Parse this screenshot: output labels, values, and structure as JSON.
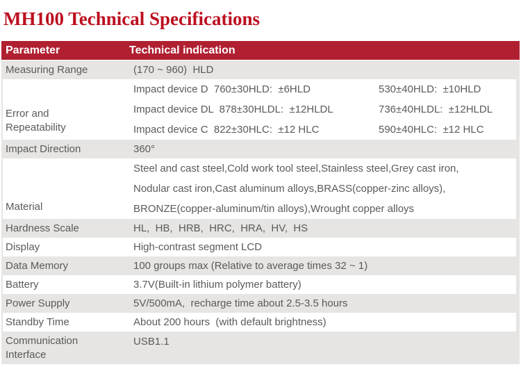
{
  "title": "MH100 Technical Specifications",
  "colors": {
    "title": "#bc0f1f",
    "header_bg": "#b02031",
    "row_alt": "#e6e5e3",
    "body_text": "#5a5a5a",
    "header_text": "#ffffff"
  },
  "table": {
    "headers": [
      "Parameter",
      "Technical indication"
    ],
    "rows": [
      {
        "param_lines": [
          "Measuring Range"
        ],
        "value_lines": [
          [
            "(170 ~ 960)  HLD"
          ]
        ]
      },
      {
        "param_lines": [
          "Error and",
          "Repeatability"
        ],
        "value_lines": [
          [
            "Impact device D  760±30HLD:  ±6HLD",
            "530±40HLD:  ±10HLD"
          ],
          [
            "Impact device DL  878±30HLDL:  ±12HLDL",
            "736±40HLDL:  ±12HLDL"
          ],
          [
            "Impact device C  822±30HLC:  ±12 HLC",
            "590±40HLC:  ±12 HLC"
          ]
        ]
      },
      {
        "param_lines": [
          "Impact Direction"
        ],
        "value_lines": [
          [
            "360°"
          ]
        ]
      },
      {
        "param_lines": [
          "Material"
        ],
        "value_lines": [
          [
            "Steel and cast steel,Cold work tool steel,Stainless steel,Grey cast iron,"
          ],
          [
            "Nodular cast iron,Cast aluminum alloys,BRASS(copper-zinc alloys),"
          ],
          [
            "BRONZE(copper-aluminum/tin alloys),Wrought copper alloys"
          ]
        ]
      },
      {
        "param_lines": [
          "Hardness Scale"
        ],
        "value_lines": [
          [
            "HL,  HB,  HRB,  HRC,  HRA,  HV,  HS"
          ]
        ]
      },
      {
        "param_lines": [
          "Display"
        ],
        "value_lines": [
          [
            "High-contrast segment LCD"
          ]
        ]
      },
      {
        "param_lines": [
          "Data Memory"
        ],
        "value_lines": [
          [
            "100 groups max (Relative to average times 32 ~ 1)"
          ]
        ]
      },
      {
        "param_lines": [
          "Battery"
        ],
        "value_lines": [
          [
            "3.7V(Built-in lithium polymer battery)"
          ]
        ]
      },
      {
        "param_lines": [
          "Power Supply"
        ],
        "value_lines": [
          [
            "5V/500mA,  recharge time about 2.5-3.5 hours"
          ]
        ]
      },
      {
        "param_lines": [
          "Standby Time"
        ],
        "value_lines": [
          [
            "About 200 hours  (with default brightness)"
          ]
        ]
      },
      {
        "param_lines": [
          "Communication",
          "Interface"
        ],
        "value_lines": [
          [
            "USB1.1"
          ]
        ]
      }
    ]
  }
}
